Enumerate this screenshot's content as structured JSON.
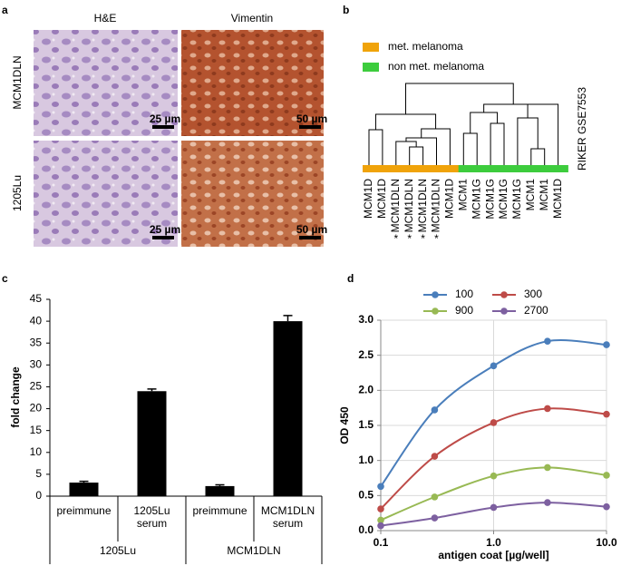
{
  "panel_labels": [
    "a",
    "b",
    "c",
    "d"
  ],
  "histology": {
    "columns": [
      "H&E",
      "Vimentin"
    ],
    "rows": [
      "MCM1DLN",
      "1205Lu"
    ],
    "scale_bars": [
      [
        "25 µm",
        "50 µm"
      ],
      [
        "25 µm",
        "50 µm"
      ]
    ]
  },
  "dendrogram": {
    "legend": [
      {
        "name": "met. melanoma",
        "color": "#f0a30a"
      },
      {
        "name": "non met. melanoma",
        "color": "#3dcc3d"
      }
    ],
    "dataset": "RIKER GSE7553",
    "leaves": [
      "MCM1D",
      "MCM1D",
      "MCM1DLN",
      "MCM1DLN",
      "MCM1DLN",
      "MCM1DLN",
      "MCM1D",
      "MCM1",
      "MCM1G",
      "MCM1G",
      "MCM1G",
      "MCM1G",
      "MCM1",
      "MCM1",
      "MCM1D"
    ],
    "leaf_colors": [
      "#f0a30a",
      "#f0a30a",
      "#f0a30a",
      "#f0a30a",
      "#f0a30a",
      "#f0a30a",
      "#f0a30a",
      "#3dcc3d",
      "#3dcc3d",
      "#3dcc3d",
      "#3dcc3d",
      "#3dcc3d",
      "#3dcc3d",
      "#3dcc3d",
      "#3dcc3d"
    ],
    "markers": [
      null,
      null,
      "*",
      "*",
      "*",
      "*",
      null,
      null,
      null,
      null,
      null,
      null,
      null,
      null,
      null
    ],
    "marker_color": "#f0a30a"
  },
  "chart_data": [
    {
      "type": "bar",
      "y_label": "fold change",
      "categories": [
        "preimmune",
        "1205Lu serum",
        "preimmune",
        "MCM1DLN serum"
      ],
      "group_labels": [
        "1205Lu",
        "MCM1DLN"
      ],
      "values": [
        3.1,
        24,
        2.3,
        40
      ],
      "errors": [
        0.3,
        0.5,
        0.3,
        1.3
      ],
      "color": "#000000",
      "ylim": [
        0,
        45
      ],
      "yticks": [
        0,
        5,
        10,
        15,
        20,
        25,
        30,
        35,
        40,
        45
      ]
    },
    {
      "type": "line",
      "x_label": "antigen coat [µg/well]",
      "y_label": "OD 450",
      "x": [
        0.1,
        0.3,
        1,
        3,
        10
      ],
      "series": [
        {
          "name": "100",
          "color": "#4a7ebb",
          "values": [
            0.63,
            1.72,
            2.35,
            2.7,
            2.65
          ]
        },
        {
          "name": "300",
          "color": "#be4b48",
          "values": [
            0.31,
            1.06,
            1.54,
            1.74,
            1.66
          ]
        },
        {
          "name": "900",
          "color": "#98b954",
          "values": [
            0.15,
            0.48,
            0.78,
            0.9,
            0.79
          ]
        },
        {
          "name": "2700",
          "color": "#7d60a0",
          "values": [
            0.07,
            0.18,
            0.33,
            0.4,
            0.34
          ]
        }
      ],
      "xlim": [
        0.1,
        10
      ],
      "xticks": [
        0.1,
        {
          "value": 1,
          "label": "1.0"
        },
        {
          "value": 10,
          "label": "10.0"
        }
      ],
      "ylim": [
        0,
        3
      ],
      "yticks": [
        {
          "value": 0,
          "label": "0.0"
        },
        {
          "value": 0.5,
          "label": "0.5"
        },
        {
          "value": 1,
          "label": "1.0"
        },
        {
          "value": 1.5,
          "label": "1.5"
        },
        {
          "value": 2,
          "label": "2.0"
        },
        {
          "value": 2.5,
          "label": "2.5"
        },
        {
          "value": 3,
          "label": "3.0"
        }
      ],
      "log_x": true,
      "grid": true
    }
  ]
}
